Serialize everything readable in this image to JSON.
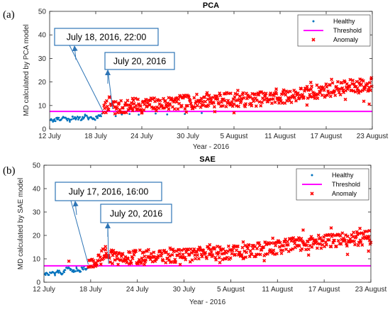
{
  "chart_data": [
    {
      "type": "scatter",
      "panel_label": "(a)",
      "title": "PCA",
      "xlabel": "Year - 2016",
      "ylabel": "MD calculated by PCA model",
      "ylim": [
        0,
        50
      ],
      "yticks": [
        0,
        10,
        20,
        30,
        40,
        50
      ],
      "xlim_days": [
        12,
        54
      ],
      "xticks": [
        {
          "day": 12,
          "label": "12 July"
        },
        {
          "day": 18,
          "label": "18 July"
        },
        {
          "day": 24,
          "label": "24 July"
        },
        {
          "day": 30,
          "label": "30 July"
        },
        {
          "day": 36,
          "label": "5 August"
        },
        {
          "day": 42,
          "label": "11 August"
        },
        {
          "day": 48,
          "label": "17 August"
        },
        {
          "day": 54,
          "label": "23 August"
        }
      ],
      "threshold": 7.5,
      "anomaly_start_day": 19.0,
      "legend": {
        "position": "top-right",
        "entries": [
          "Healthy",
          "Threshold",
          "Anomaly"
        ]
      },
      "colors": {
        "healthy": "#0072BD",
        "threshold": "#FF00FF",
        "anomaly": "#FF0000"
      },
      "series": [
        {
          "name": "Healthy",
          "points": [
            [
              12.2,
              4.2
            ],
            [
              12.6,
              3.5
            ],
            [
              13.0,
              4.8
            ],
            [
              13.4,
              3.9
            ],
            [
              13.8,
              5.1
            ],
            [
              14.2,
              4.4
            ],
            [
              14.6,
              3.7
            ],
            [
              15.0,
              5.3
            ],
            [
              15.4,
              4.1
            ],
            [
              15.8,
              4.9
            ],
            [
              16.2,
              4.3
            ],
            [
              16.6,
              5.6
            ],
            [
              17.0,
              4.6
            ],
            [
              17.4,
              5.0
            ],
            [
              17.8,
              4.2
            ],
            [
              18.2,
              5.4
            ],
            [
              18.6,
              5.8
            ],
            [
              20.6,
              5.5
            ],
            [
              21.4,
              6.2
            ],
            [
              22.4,
              6.4
            ],
            [
              23.6,
              6.1
            ],
            [
              25.8,
              6.6
            ],
            [
              27.3,
              6.2
            ],
            [
              29.6,
              6.4
            ],
            [
              31.8,
              6.8
            ]
          ]
        },
        {
          "name": "Anomaly",
          "trend": [
            [
              19.0,
              7.0
            ],
            [
              19.3,
              9.0
            ],
            [
              19.6,
              11.0
            ],
            [
              20.2,
              10.0
            ],
            [
              21.0,
              9.0
            ],
            [
              23.0,
              10.0
            ],
            [
              26.0,
              10.5
            ],
            [
              30.0,
              11.5
            ],
            [
              34.0,
              12.5
            ],
            [
              38.0,
              12.5
            ],
            [
              42.0,
              13.5
            ],
            [
              45.0,
              15.0
            ],
            [
              48.0,
              16.5
            ],
            [
              51.0,
              18.0
            ],
            [
              54.0,
              18.5
            ]
          ],
          "spread": 3.0,
          "highs": [
            [
              19.8,
              13.5
            ],
            [
              22.8,
              13.0
            ],
            [
              27.5,
              13.3
            ],
            [
              32.5,
              15.4
            ],
            [
              36.5,
              16.4
            ],
            [
              41.5,
              17.0
            ],
            [
              46.0,
              19.8
            ],
            [
              48.7,
              21.1
            ],
            [
              52.4,
              21.2
            ],
            [
              53.9,
              21.8
            ]
          ],
          "lows": [
            [
              20.5,
              6.5
            ],
            [
              24.0,
              6.8
            ],
            [
              29.8,
              7.2
            ],
            [
              33.5,
              7.4
            ],
            [
              36.0,
              6.9
            ],
            [
              45.5,
              10.2
            ],
            [
              50.5,
              12.6
            ],
            [
              52.9,
              11.8
            ],
            [
              53.6,
              10.6
            ]
          ]
        }
      ],
      "annotations": [
        {
          "text": "July 18, 2016, 22:00",
          "target_day": 18.9,
          "target_y": 7.8
        },
        {
          "text": "July 20, 2016",
          "target_day": 20.2,
          "target_y": 8.5
        }
      ]
    },
    {
      "type": "scatter",
      "panel_label": "(b)",
      "title": "SAE",
      "xlabel": "Year - 2016",
      "ylabel": "MD calculated by SAE model",
      "ylim": [
        0,
        50
      ],
      "yticks": [
        0,
        10,
        20,
        30,
        40,
        50
      ],
      "xlim_days": [
        12,
        54
      ],
      "xticks": [
        {
          "day": 12,
          "label": "12 July"
        },
        {
          "day": 18,
          "label": "18 July"
        },
        {
          "day": 24,
          "label": "24 July"
        },
        {
          "day": 30,
          "label": "30 July"
        },
        {
          "day": 36,
          "label": "5 August"
        },
        {
          "day": 42,
          "label": "11 August"
        },
        {
          "day": 48,
          "label": "17 August"
        },
        {
          "day": 54,
          "label": "23 August"
        }
      ],
      "threshold": 7.0,
      "anomaly_start_day": 17.7,
      "legend": {
        "position": "top-right",
        "entries": [
          "Healthy",
          "Threshold",
          "Anomaly"
        ]
      },
      "colors": {
        "healthy": "#0072BD",
        "threshold": "#FF00FF",
        "anomaly": "#FF0000"
      },
      "series": [
        {
          "name": "Healthy",
          "points": [
            [
              12.2,
              3.8
            ],
            [
              12.6,
              3.2
            ],
            [
              13.0,
              4.1
            ],
            [
              13.4,
              3.5
            ],
            [
              13.8,
              4.6
            ],
            [
              14.2,
              3.7
            ],
            [
              14.6,
              4.3
            ],
            [
              15.0,
              6.1
            ],
            [
              15.4,
              5.2
            ],
            [
              15.8,
              4.4
            ],
            [
              16.2,
              5.8
            ],
            [
              16.6,
              4.9
            ],
            [
              17.0,
              6.2
            ],
            [
              17.4,
              5.4
            ]
          ]
        },
        {
          "name": "Anomaly",
          "trend": [
            [
              17.7,
              7.5
            ],
            [
              18.5,
              8.0
            ],
            [
              19.2,
              10.0
            ],
            [
              19.8,
              13.0
            ],
            [
              20.6,
              11.0
            ],
            [
              22.0,
              10.0
            ],
            [
              25.0,
              11.0
            ],
            [
              30.0,
              11.5
            ],
            [
              34.0,
              12.5
            ],
            [
              38.0,
              13.0
            ],
            [
              42.0,
              15.0
            ],
            [
              46.0,
              17.0
            ],
            [
              50.0,
              18.0
            ],
            [
              54.0,
              19.0
            ]
          ],
          "spread": 3.0,
          "highs": [
            [
              15.2,
              9.0
            ],
            [
              19.9,
              15.2
            ],
            [
              23.7,
              13.6
            ],
            [
              28.2,
              14.6
            ],
            [
              33.3,
              16.0
            ],
            [
              37.6,
              17.2
            ],
            [
              41.4,
              18.8
            ],
            [
              45.3,
              22.3
            ],
            [
              48.9,
              23.2
            ],
            [
              52.6,
              23.0
            ],
            [
              53.8,
              22.0
            ]
          ],
          "lows": [
            [
              20.8,
              8.0
            ],
            [
              24.9,
              7.6
            ],
            [
              29.5,
              7.6
            ],
            [
              34.6,
              8.4
            ],
            [
              40.3,
              9.2
            ],
            [
              46.0,
              11.6
            ],
            [
              51.0,
              11.9
            ],
            [
              53.7,
              13.3
            ]
          ]
        }
      ],
      "annotations": [
        {
          "text": "July 17, 2016, 16:00",
          "target_day": 17.7,
          "target_y": 7.5
        },
        {
          "text": "July 20, 2016",
          "target_day": 20.3,
          "target_y": 8.0
        }
      ]
    }
  ]
}
